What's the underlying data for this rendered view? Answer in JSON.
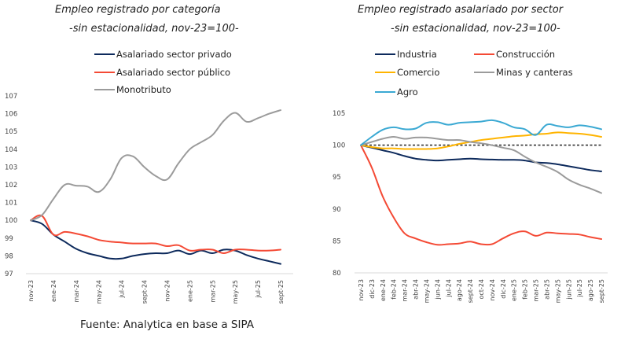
{
  "chart_data": [
    {
      "type": "line",
      "title": "Empleo registrado por categoría",
      "subtitle": "-sin estacionalidad, nov-23=100-",
      "xlabel": "",
      "ylabel": "",
      "ylim": [
        97,
        107
      ],
      "yticks": [
        97,
        98,
        99,
        100,
        101,
        102,
        103,
        104,
        105,
        106,
        107
      ],
      "x": [
        "nov-23",
        "dic-23",
        "ene-24",
        "feb-24",
        "mar-24",
        "abr-24",
        "may-24",
        "jun-24",
        "jul-24",
        "ago-24",
        "sept-24",
        "oct-24",
        "nov-24",
        "dic-24",
        "ene-25",
        "feb-25",
        "mar-25",
        "abr-25",
        "may-25",
        "jun-25",
        "jul-25",
        "ago-25",
        "sept-25"
      ],
      "xtick_labels": [
        "nov-23",
        "ene-24",
        "mar-24",
        "may-24",
        "jul-24",
        "sept-24",
        "nov-24",
        "ene-25",
        "mar-25",
        "may-25",
        "jul-25",
        "sept-25"
      ],
      "grid": false,
      "legend": "top-center",
      "series": [
        {
          "name": "Asalariado sector privado",
          "color": "#0d2a5c",
          "values": [
            100.0,
            99.8,
            99.2,
            98.8,
            98.4,
            98.15,
            98.0,
            97.85,
            97.85,
            98.0,
            98.1,
            98.15,
            98.15,
            98.3,
            98.1,
            98.3,
            98.15,
            98.35,
            98.3,
            98.05,
            97.85,
            97.7,
            97.55
          ]
        },
        {
          "name": "Asalariado sector público",
          "color": "#f44a35",
          "values": [
            100.0,
            100.25,
            99.2,
            99.35,
            99.25,
            99.1,
            98.9,
            98.8,
            98.75,
            98.7,
            98.7,
            98.7,
            98.55,
            98.6,
            98.3,
            98.35,
            98.35,
            98.15,
            98.35,
            98.35,
            98.3,
            98.3,
            98.35
          ]
        },
        {
          "name": "Monotributo",
          "color": "#9b9b9b",
          "values": [
            100.0,
            100.3,
            101.2,
            102.0,
            101.95,
            101.9,
            101.6,
            102.3,
            103.5,
            103.6,
            103.0,
            102.5,
            102.3,
            103.2,
            104.0,
            104.4,
            104.8,
            105.6,
            106.05,
            105.55,
            105.75,
            106.0,
            106.2
          ]
        }
      ]
    },
    {
      "type": "line",
      "title": "Empleo registrado asalariado por sector",
      "subtitle": "-sin estacionalidad, nov-23=100-",
      "xlabel": "",
      "ylabel": "",
      "ylim": [
        80,
        105
      ],
      "yticks": [
        80,
        85,
        90,
        95,
        100,
        105
      ],
      "x": [
        "nov-23",
        "dic-23",
        "ene-24",
        "feb-24",
        "mar-24",
        "abr-24",
        "may-24",
        "jun-24",
        "jul-24",
        "ago-24",
        "sept-24",
        "oct-24",
        "nov-24",
        "dic-24",
        "ene-25",
        "feb-25",
        "mar-25",
        "abr-25",
        "may-25",
        "jun-25",
        "jul-25",
        "ago-25",
        "sept-25"
      ],
      "xtick_labels": [
        "nov-23",
        "dic-23",
        "ene-24",
        "feb-24",
        "mar-24",
        "abr-24",
        "may-24",
        "jun-24",
        "jul-24",
        "ago-24",
        "sept-24",
        "oct-24",
        "nov-24",
        "dic-24",
        "ene-25",
        "feb-25",
        "mar-25",
        "abr-25",
        "may-25",
        "jun-25",
        "jul-25",
        "ago-25",
        "sept-25"
      ],
      "reference_line": 100,
      "grid": false,
      "legend": "top-center",
      "series": [
        {
          "name": "Industria",
          "color": "#0d2a5c",
          "values": [
            100.0,
            99.6,
            99.2,
            98.8,
            98.3,
            97.9,
            97.7,
            97.6,
            97.7,
            97.8,
            97.9,
            97.8,
            97.75,
            97.7,
            97.7,
            97.6,
            97.3,
            97.2,
            97.0,
            96.7,
            96.4,
            96.1,
            95.9
          ]
        },
        {
          "name": "Construcción",
          "color": "#f44a35",
          "values": [
            100.0,
            96.5,
            92.0,
            88.7,
            86.2,
            85.4,
            84.8,
            84.4,
            84.5,
            84.6,
            84.9,
            84.5,
            84.5,
            85.4,
            86.2,
            86.5,
            85.8,
            86.3,
            86.2,
            86.1,
            86.0,
            85.6,
            85.3
          ]
        },
        {
          "name": "Comercio",
          "color": "#ffb400",
          "values": [
            100.0,
            99.7,
            99.5,
            99.5,
            99.4,
            99.4,
            99.4,
            99.5,
            99.8,
            100.2,
            100.5,
            100.8,
            101.0,
            101.2,
            101.4,
            101.5,
            101.7,
            101.8,
            102.0,
            101.9,
            101.8,
            101.6,
            101.3
          ]
        },
        {
          "name": "Minas y canteras",
          "color": "#9b9b9b",
          "values": [
            100.0,
            100.5,
            101.0,
            101.3,
            101.0,
            101.2,
            101.2,
            101.0,
            100.8,
            100.8,
            100.5,
            100.3,
            100.0,
            99.6,
            99.2,
            98.2,
            97.3,
            96.6,
            95.8,
            94.6,
            93.8,
            93.2,
            92.5
          ]
        },
        {
          "name": "Agro",
          "color": "#3ba9d3",
          "values": [
            100.0,
            101.3,
            102.4,
            102.8,
            102.5,
            102.6,
            103.5,
            103.6,
            103.2,
            103.5,
            103.6,
            103.7,
            103.9,
            103.5,
            102.8,
            102.5,
            101.6,
            103.2,
            103.0,
            102.8,
            103.1,
            102.9,
            102.5
          ]
        }
      ]
    }
  ],
  "left_chart": {
    "title": "Empleo registrado por categoría",
    "subtitle": "-sin estacionalidad, nov-23=100-",
    "legend": [
      "Asalariado sector privado",
      "Asalariado sector público",
      "Monotributo"
    ]
  },
  "right_chart": {
    "title": "Empleo registrado asalariado por sector",
    "subtitle": "-sin estacionalidad, nov-23=100-",
    "legend": [
      "Industria",
      "Construcción",
      "Comercio",
      "Minas y canteras",
      "Agro"
    ]
  },
  "source": "Fuente: Analytica en base a SIPA",
  "colors": {
    "navy": "#0d2a5c",
    "red": "#f44a35",
    "grey": "#9b9b9b",
    "amber": "#ffb400",
    "sky": "#3ba9d3"
  }
}
